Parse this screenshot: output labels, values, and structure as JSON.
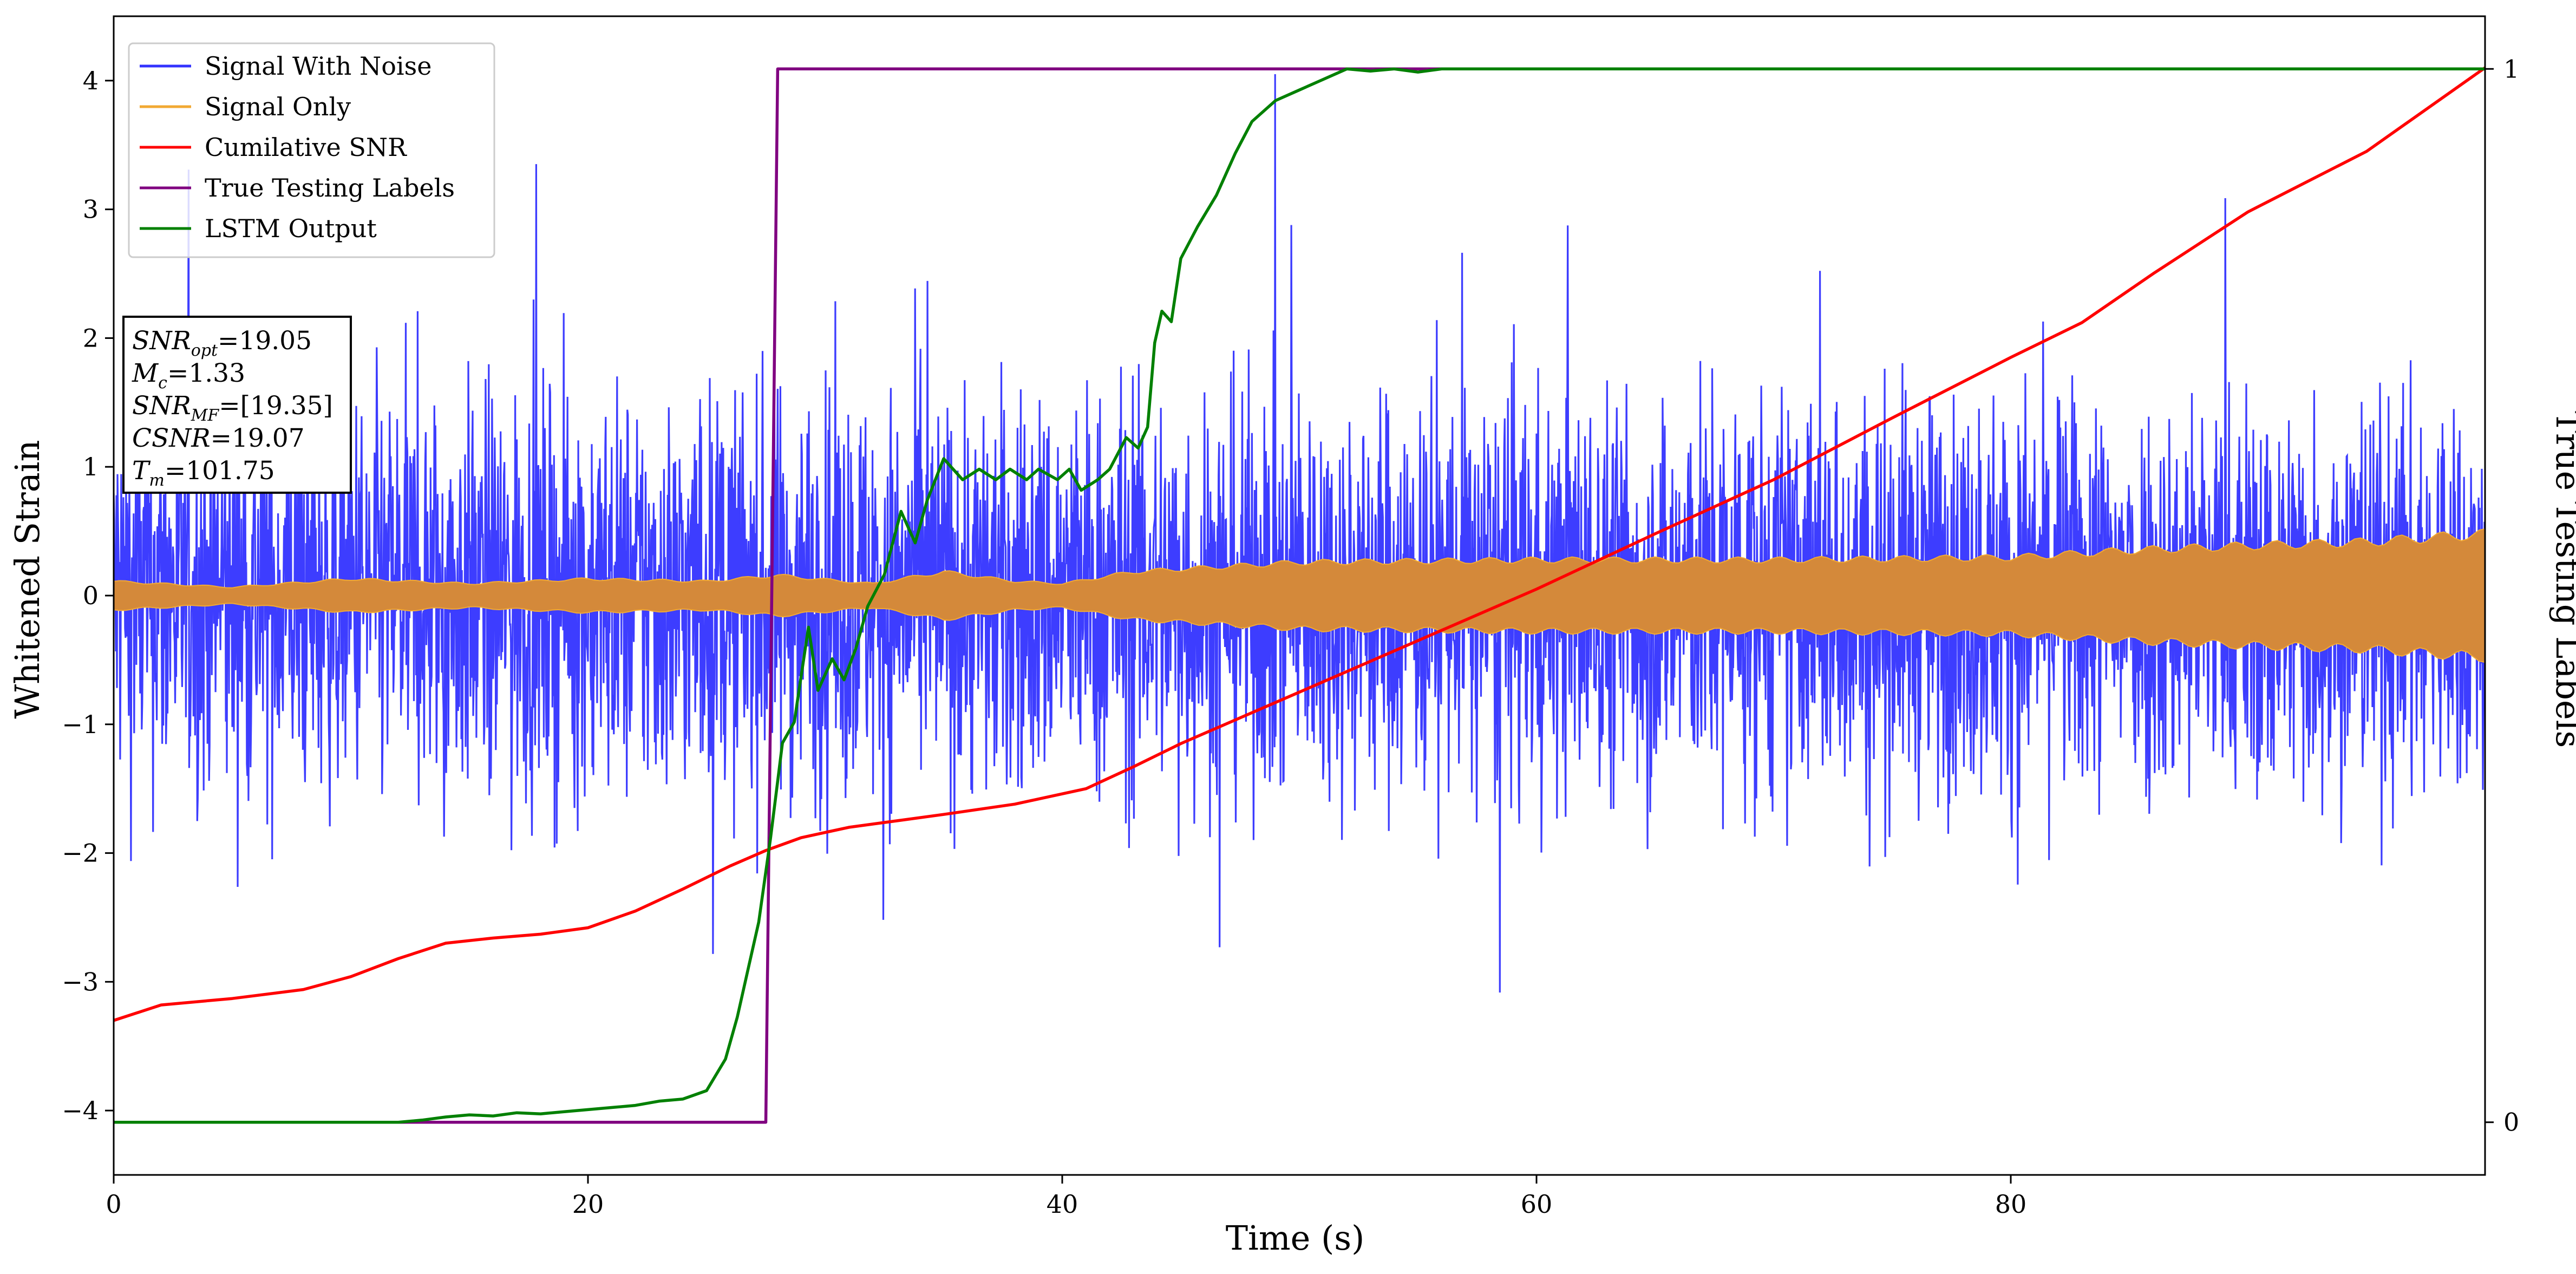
{
  "chart_data": {
    "type": "line",
    "xlabel": "Time (s)",
    "ylabel": "Whitened Strain",
    "y2label": "True Testing Labels",
    "xlim": [
      0,
      100
    ],
    "ylim": [
      -4.5,
      4.5
    ],
    "y2lim": [
      -0.05,
      1.05
    ],
    "xticks": [
      "0",
      "20",
      "40",
      "60",
      "80"
    ],
    "xtick_values": [
      0,
      20,
      40,
      60,
      80
    ],
    "yticks": [
      "−4",
      "−3",
      "−2",
      "−1",
      "0",
      "1",
      "2",
      "3",
      "4"
    ],
    "ytick_values": [
      -4,
      -3,
      -2,
      -1,
      0,
      1,
      2,
      3,
      4
    ],
    "y2ticks": [
      "0",
      "1"
    ],
    "y2tick_values": [
      0,
      1
    ],
    "legend_position": "upper-left",
    "series": [
      {
        "name": "Signal With Noise",
        "axis": "left",
        "color": "#3333ff",
        "style": "noise",
        "points": [
          [
            0,
            0
          ],
          [
            100,
            0
          ]
        ]
      },
      {
        "name": "Signal Only",
        "axis": "left",
        "color": "#f2a933",
        "fill_color": "#d4893a",
        "style": "band",
        "envelope": [
          [
            0,
            0.12
          ],
          [
            5,
            0.07
          ],
          [
            10,
            0.14
          ],
          [
            15,
            0.1
          ],
          [
            20,
            0.14
          ],
          [
            25,
            0.12
          ],
          [
            28,
            0.17
          ],
          [
            32,
            0.1
          ],
          [
            35,
            0.2
          ],
          [
            38,
            0.12
          ],
          [
            40,
            0.1
          ],
          [
            43,
            0.2
          ],
          [
            50,
            0.28
          ],
          [
            60,
            0.3
          ],
          [
            70,
            0.3
          ],
          [
            80,
            0.32
          ],
          [
            85,
            0.38
          ],
          [
            90,
            0.42
          ],
          [
            95,
            0.45
          ],
          [
            100,
            0.52
          ]
        ]
      },
      {
        "name": "Cumilative SNR",
        "axis": "left",
        "color": "#ff0000",
        "style": "line",
        "points": [
          [
            0,
            -3.3
          ],
          [
            2,
            -3.18
          ],
          [
            5,
            -3.13
          ],
          [
            8,
            -3.06
          ],
          [
            10,
            -2.96
          ],
          [
            12,
            -2.82
          ],
          [
            14,
            -2.7
          ],
          [
            16,
            -2.66
          ],
          [
            18,
            -2.63
          ],
          [
            20,
            -2.58
          ],
          [
            22,
            -2.45
          ],
          [
            24,
            -2.28
          ],
          [
            26,
            -2.1
          ],
          [
            27.5,
            -1.98
          ],
          [
            29,
            -1.88
          ],
          [
            31,
            -1.8
          ],
          [
            33,
            -1.75
          ],
          [
            35,
            -1.7
          ],
          [
            38,
            -1.62
          ],
          [
            41,
            -1.5
          ],
          [
            43,
            -1.33
          ],
          [
            45,
            -1.15
          ],
          [
            50,
            -0.75
          ],
          [
            55,
            -0.35
          ],
          [
            60,
            0.05
          ],
          [
            65,
            0.48
          ],
          [
            70,
            0.9
          ],
          [
            75,
            1.38
          ],
          [
            80,
            1.85
          ],
          [
            83,
            2.12
          ],
          [
            86,
            2.5
          ],
          [
            90,
            2.98
          ],
          [
            95,
            3.45
          ],
          [
            100,
            4.1
          ]
        ]
      },
      {
        "name": "True Testing Labels",
        "axis": "right",
        "color": "#800080",
        "style": "line",
        "points": [
          [
            0,
            0
          ],
          [
            27.5,
            0
          ],
          [
            28,
            1
          ],
          [
            100,
            1
          ]
        ]
      },
      {
        "name": "LSTM Output",
        "axis": "right",
        "color": "#008000",
        "style": "line",
        "points": [
          [
            0,
            0
          ],
          [
            12,
            0
          ],
          [
            13,
            0.002
          ],
          [
            14,
            0.005
          ],
          [
            15,
            0.007
          ],
          [
            16,
            0.006
          ],
          [
            17,
            0.009
          ],
          [
            18,
            0.008
          ],
          [
            19,
            0.01
          ],
          [
            20,
            0.012
          ],
          [
            21,
            0.014
          ],
          [
            22,
            0.016
          ],
          [
            23,
            0.02
          ],
          [
            24,
            0.022
          ],
          [
            25,
            0.03
          ],
          [
            25.8,
            0.06
          ],
          [
            26.3,
            0.1
          ],
          [
            26.8,
            0.15
          ],
          [
            27.2,
            0.19
          ],
          [
            27.7,
            0.27
          ],
          [
            28.2,
            0.36
          ],
          [
            28.7,
            0.38
          ],
          [
            29.3,
            0.47
          ],
          [
            29.7,
            0.41
          ],
          [
            30.3,
            0.44
          ],
          [
            30.8,
            0.42
          ],
          [
            31.3,
            0.45
          ],
          [
            31.8,
            0.49
          ],
          [
            32.5,
            0.52
          ],
          [
            33.2,
            0.58
          ],
          [
            33.8,
            0.55
          ],
          [
            34.3,
            0.59
          ],
          [
            35,
            0.63
          ],
          [
            35.8,
            0.61
          ],
          [
            36.5,
            0.62
          ],
          [
            37.2,
            0.61
          ],
          [
            37.8,
            0.62
          ],
          [
            38.5,
            0.61
          ],
          [
            39,
            0.62
          ],
          [
            39.8,
            0.61
          ],
          [
            40.3,
            0.62
          ],
          [
            40.8,
            0.6
          ],
          [
            41.5,
            0.61
          ],
          [
            42,
            0.62
          ],
          [
            42.7,
            0.65
          ],
          [
            43.2,
            0.64
          ],
          [
            43.6,
            0.66
          ],
          [
            43.9,
            0.74
          ],
          [
            44.2,
            0.77
          ],
          [
            44.6,
            0.76
          ],
          [
            45,
            0.82
          ],
          [
            45.7,
            0.85
          ],
          [
            46.5,
            0.88
          ],
          [
            47.3,
            0.92
          ],
          [
            48,
            0.95
          ],
          [
            49,
            0.97
          ],
          [
            50,
            0.98
          ],
          [
            51,
            0.99
          ],
          [
            52,
            1
          ],
          [
            53,
            0.998
          ],
          [
            54,
            1
          ],
          [
            55,
            0.997
          ],
          [
            56,
            1
          ],
          [
            100,
            1
          ]
        ]
      }
    ],
    "annotation_lines": [
      {
        "symbol": "SNR",
        "sub": "opt",
        "value": "=19.05"
      },
      {
        "symbol": "M",
        "sub": "c",
        "value": "=1.33"
      },
      {
        "symbol": "SNR",
        "sub": "MF",
        "value": "=[19.35]"
      },
      {
        "symbol": "CSNR",
        "sub": "",
        "value": "=19.07"
      },
      {
        "symbol": "T",
        "sub": "m",
        "value": "=101.75"
      }
    ]
  }
}
